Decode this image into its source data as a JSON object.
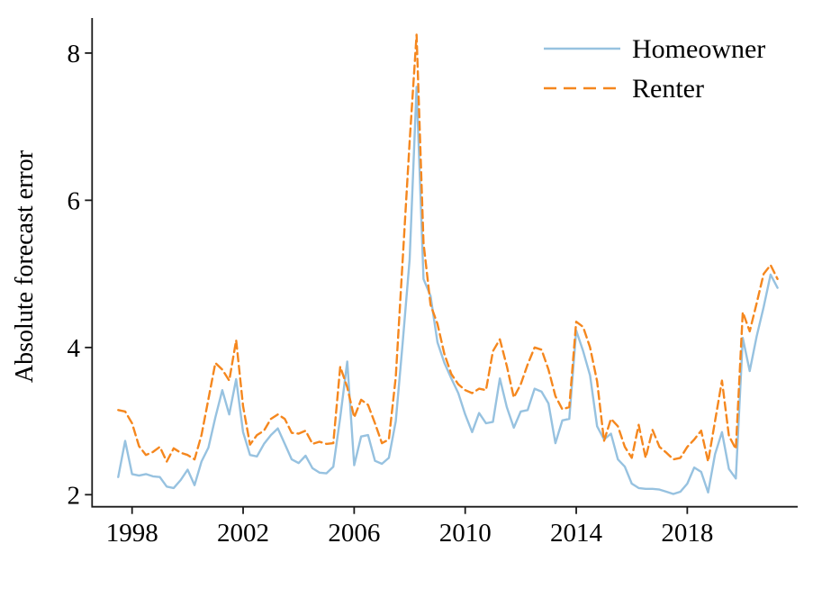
{
  "chart_data": {
    "type": "line",
    "title": "",
    "xlabel": "",
    "ylabel": "Absolute forecast error",
    "x_unit": "year (quarterly observations)",
    "xticks": [
      1998,
      2002,
      2006,
      2010,
      2014,
      2018
    ],
    "yticks": [
      2,
      4,
      6,
      8
    ],
    "xlim": [
      1996.55,
      2021.95
    ],
    "ylim": [
      1.85,
      8.5
    ],
    "grid": false,
    "legend_position": "top-right-inside",
    "axis_color": "#1a1a1a",
    "x": [
      1997.5,
      1997.75,
      1998.0,
      1998.25,
      1998.5,
      1998.75,
      1999.0,
      1999.25,
      1999.5,
      1999.75,
      2000.0,
      2000.25,
      2000.5,
      2000.75,
      2001.0,
      2001.25,
      2001.5,
      2001.75,
      2002.0,
      2002.25,
      2002.5,
      2002.75,
      2003.0,
      2003.25,
      2003.5,
      2003.75,
      2004.0,
      2004.25,
      2004.5,
      2004.75,
      2005.0,
      2005.25,
      2005.5,
      2005.75,
      2006.0,
      2006.25,
      2006.5,
      2006.75,
      2007.0,
      2007.25,
      2007.5,
      2007.75,
      2008.0,
      2008.25,
      2008.5,
      2008.75,
      2009.0,
      2009.25,
      2009.5,
      2009.75,
      2010.0,
      2010.25,
      2010.5,
      2010.75,
      2011.0,
      2011.25,
      2011.5,
      2011.75,
      2012.0,
      2012.25,
      2012.5,
      2012.75,
      2013.0,
      2013.25,
      2013.5,
      2013.75,
      2014.0,
      2014.25,
      2014.5,
      2014.75,
      2015.0,
      2015.25,
      2015.5,
      2015.75,
      2016.0,
      2016.25,
      2016.5,
      2016.75,
      2017.0,
      2017.25,
      2017.5,
      2017.75,
      2018.0,
      2018.25,
      2018.5,
      2018.75,
      2019.0,
      2019.25,
      2019.5,
      2019.75,
      2020.0,
      2020.25,
      2020.5,
      2020.75,
      2021.0,
      2021.25
    ],
    "series": [
      {
        "name": "Homeowner",
        "style": "solid",
        "color": "#97c2e0",
        "values": [
          2.24,
          2.73,
          2.28,
          2.26,
          2.28,
          2.25,
          2.24,
          2.11,
          2.09,
          2.2,
          2.34,
          2.13,
          2.45,
          2.64,
          3.05,
          3.42,
          3.09,
          3.57,
          2.85,
          2.54,
          2.52,
          2.69,
          2.81,
          2.9,
          2.69,
          2.48,
          2.43,
          2.53,
          2.36,
          2.3,
          2.29,
          2.38,
          3.05,
          3.81,
          2.4,
          2.79,
          2.81,
          2.46,
          2.42,
          2.5,
          3.0,
          4.07,
          5.2,
          7.54,
          4.93,
          4.7,
          4.07,
          3.79,
          3.58,
          3.38,
          3.09,
          2.85,
          3.11,
          2.97,
          2.99,
          3.58,
          3.19,
          2.91,
          3.13,
          3.15,
          3.44,
          3.4,
          3.24,
          2.7,
          3.01,
          3.03,
          4.23,
          3.95,
          3.62,
          2.93,
          2.75,
          2.83,
          2.48,
          2.38,
          2.15,
          2.09,
          2.08,
          2.08,
          2.07,
          2.04,
          2.01,
          2.04,
          2.15,
          2.37,
          2.31,
          2.03,
          2.55,
          2.85,
          2.35,
          2.22,
          4.13,
          3.68,
          4.15,
          4.55,
          4.99,
          4.81
        ]
      },
      {
        "name": "Renter",
        "style": "dashed",
        "color": "#f5871e",
        "values": [
          3.15,
          3.13,
          2.97,
          2.66,
          2.54,
          2.58,
          2.65,
          2.45,
          2.63,
          2.57,
          2.54,
          2.48,
          2.81,
          3.3,
          3.79,
          3.7,
          3.55,
          4.1,
          3.2,
          2.68,
          2.81,
          2.87,
          3.03,
          3.09,
          3.03,
          2.84,
          2.83,
          2.87,
          2.69,
          2.72,
          2.69,
          2.7,
          3.74,
          3.46,
          3.05,
          3.29,
          3.22,
          2.97,
          2.7,
          2.75,
          3.6,
          5.2,
          6.8,
          8.25,
          5.42,
          4.58,
          4.32,
          3.91,
          3.64,
          3.5,
          3.42,
          3.38,
          3.44,
          3.42,
          3.95,
          4.11,
          3.75,
          3.32,
          3.5,
          3.77,
          4.0,
          3.97,
          3.7,
          3.34,
          3.16,
          3.19,
          4.35,
          4.28,
          4.0,
          3.54,
          2.73,
          3.03,
          2.93,
          2.65,
          2.5,
          2.95,
          2.5,
          2.88,
          2.65,
          2.57,
          2.48,
          2.5,
          2.65,
          2.75,
          2.87,
          2.45,
          3.0,
          3.55,
          2.8,
          2.62,
          4.48,
          4.22,
          4.6,
          5.0,
          5.12,
          4.93
        ]
      }
    ]
  }
}
